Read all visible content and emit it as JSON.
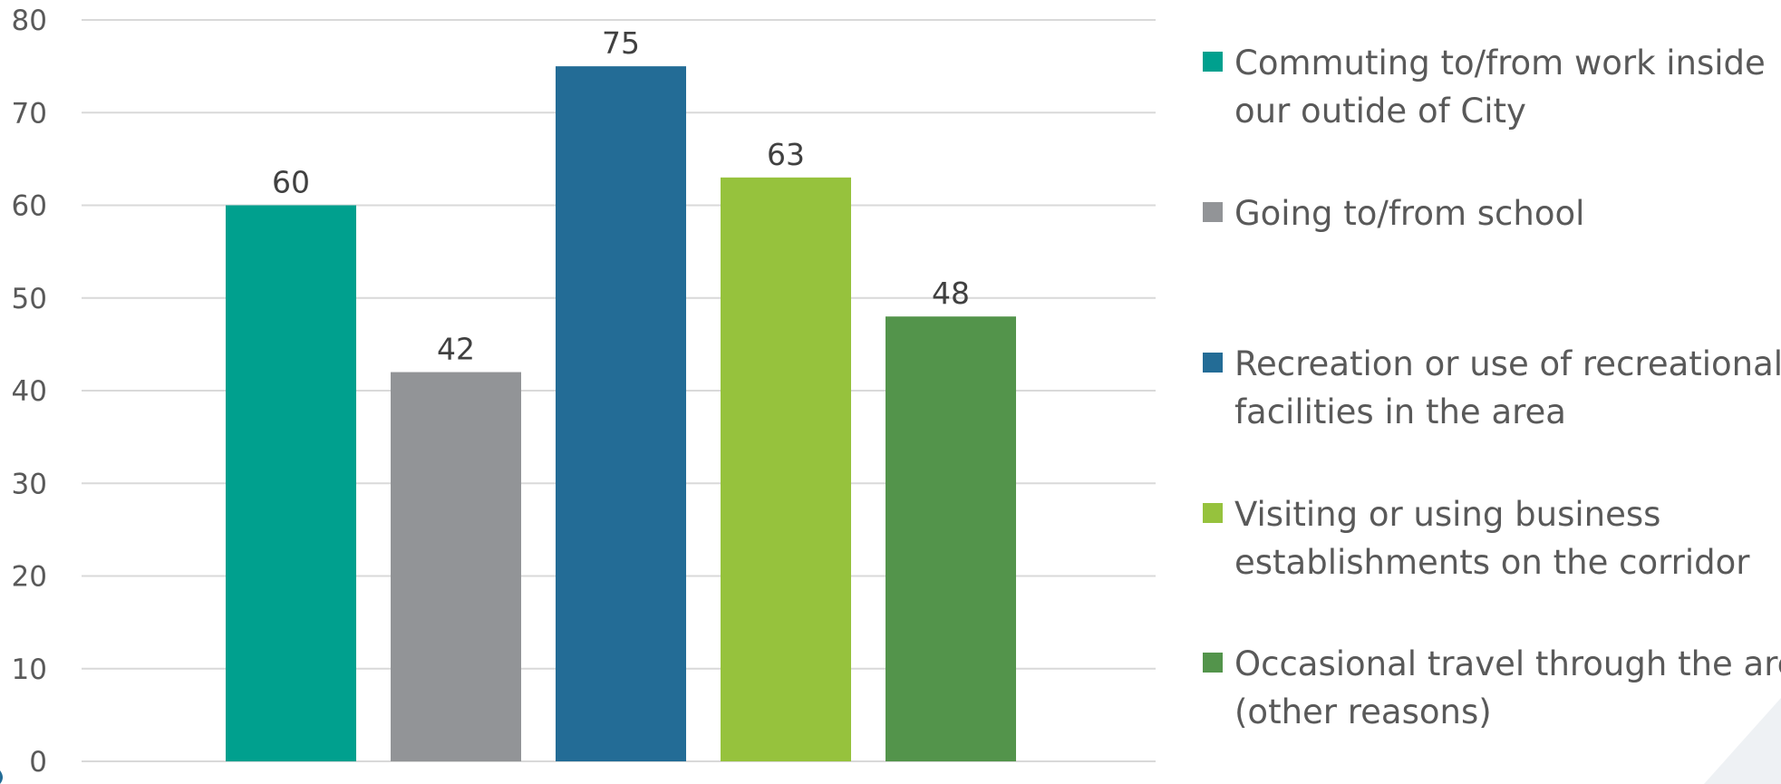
{
  "chart_data": {
    "type": "bar",
    "title": "",
    "xlabel": "",
    "ylabel": "",
    "ylim": [
      0,
      80
    ],
    "yticks": [
      0,
      10,
      20,
      30,
      40,
      50,
      60,
      70,
      80
    ],
    "grid": true,
    "legend_position": "right",
    "data_labels": true,
    "categories": [
      "Commuting to/from work inside our outide of City",
      "Going to/from school",
      "Recreation or use of recreational facilities in the area",
      "Visiting or using business establishments on the corridor",
      "Occasional travel through the area (other reasons)"
    ],
    "series": [
      {
        "values": [
          60,
          42,
          75,
          63,
          48
        ],
        "colors": [
          "#00A08E",
          "#929497",
          "#236C96",
          "#96C23D",
          "#53944B"
        ]
      }
    ],
    "legend": [
      {
        "lines": [
          "Commuting to/from work inside",
          "our outide of City"
        ],
        "color": "#00A08E"
      },
      {
        "lines": [
          "Going to/from school"
        ],
        "color": "#929497"
      },
      {
        "lines": [
          "Recreation or use of recreational",
          "facilities in the area"
        ],
        "color": "#236C96"
      },
      {
        "lines": [
          "Visiting or using business",
          "establishments on the corridor"
        ],
        "color": "#96C23D"
      },
      {
        "lines": [
          "Occasional travel through the area",
          "(other reasons)"
        ],
        "color": "#53944B"
      }
    ]
  }
}
